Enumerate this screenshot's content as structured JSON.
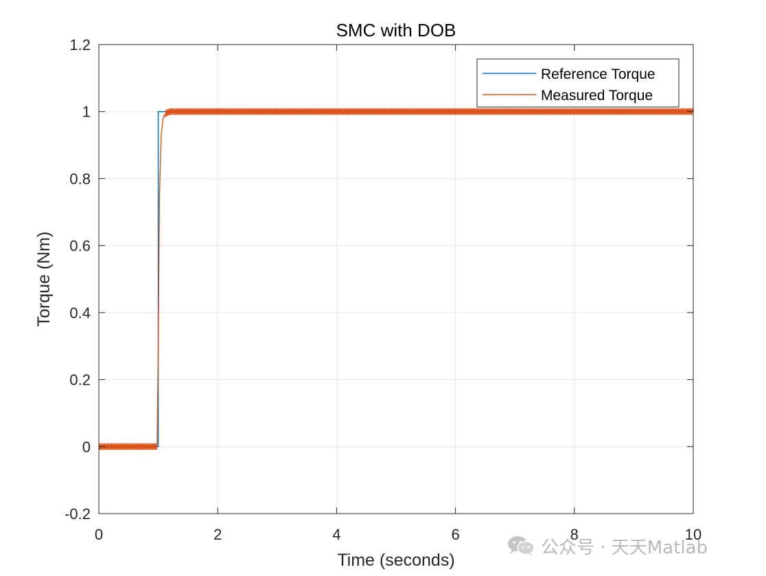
{
  "chart_data": {
    "type": "line",
    "title": "SMC with DOB",
    "xlabel": "Time (seconds)",
    "ylabel": "Torque (Nm)",
    "xlim": [
      0,
      10
    ],
    "ylim": [
      -0.2,
      1.2
    ],
    "xticks": [
      0,
      2,
      4,
      6,
      8,
      10
    ],
    "yticks": [
      -0.2,
      0,
      0.2,
      0.4,
      0.6,
      0.8,
      1,
      1.2
    ],
    "xtick_labels": [
      "0",
      "2",
      "4",
      "6",
      "8",
      "10"
    ],
    "ytick_labels": [
      "-0.2",
      "0",
      "0.2",
      "0.4",
      "0.6",
      "0.8",
      "1",
      "1.2"
    ],
    "grid": true,
    "legend": "top-right",
    "series": [
      {
        "name": "Reference Torque",
        "color": "#0072BD",
        "x": [
          0,
          0.999,
          1.0,
          10
        ],
        "y": [
          0,
          0,
          1,
          1
        ]
      },
      {
        "name": "Measured Torque",
        "color": "#D95319",
        "x": [
          0,
          0.98,
          1.0,
          1.02,
          1.05,
          1.08,
          1.12,
          1.2,
          1.3,
          10
        ],
        "y": [
          0,
          0,
          0.3,
          0.75,
          0.93,
          0.98,
          0.995,
          1.0,
          1.0,
          1.0
        ],
        "chatter_amplitude": 0.01
      }
    ]
  },
  "watermark": {
    "icon": "wechat-icon",
    "text": "公众号 · 天天Matlab"
  }
}
